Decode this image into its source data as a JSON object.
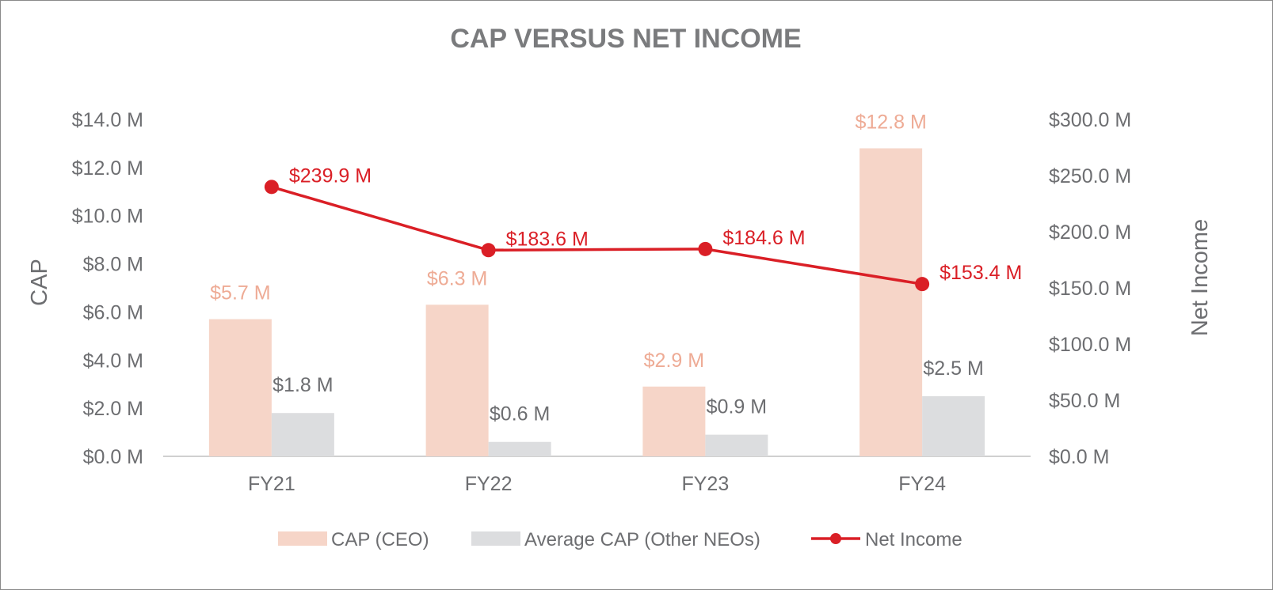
{
  "chart_data": {
    "type": "bar",
    "title": "CAP VERSUS NET INCOME",
    "categories": [
      "FY21",
      "FY22",
      "FY23",
      "FY24"
    ],
    "xlabel": "",
    "ylabel": "CAP",
    "y2label": "Net Income",
    "ylim": [
      0,
      14
    ],
    "y2lim": [
      0,
      300
    ],
    "y_ticks": [
      "$0.0 M",
      "$2.0 M",
      "$4.0 M",
      "$6.0 M",
      "$8.0 M",
      "$10.0 M",
      "$12.0 M",
      "$14.0 M"
    ],
    "y2_ticks": [
      "$0.0 M",
      "$50.0 M",
      "$100.0 M",
      "$150.0 M",
      "$200.0 M",
      "$250.0 M",
      "$300.0 M"
    ],
    "grid": false,
    "legend_position": "bottom",
    "series": [
      {
        "name": "CAP (CEO)",
        "kind": "bar",
        "axis": "left",
        "color": "#f6d5c8",
        "label_color": "#eeab95",
        "values": [
          5.7,
          6.3,
          2.9,
          12.8
        ],
        "labels": [
          "$5.7 M",
          "$6.3 M",
          "$2.9 M",
          "$12.8 M"
        ]
      },
      {
        "name": "Average CAP (Other NEOs)",
        "kind": "bar",
        "axis": "left",
        "color": "#dcdddf",
        "label_color": "#6d6e71",
        "values": [
          1.8,
          0.6,
          0.9,
          2.5
        ],
        "labels": [
          "$1.8 M",
          "$0.6 M",
          "$0.9 M",
          "$2.5 M"
        ]
      },
      {
        "name": "Net Income",
        "kind": "line",
        "axis": "right",
        "color": "#da1f26",
        "label_color": "#da1f26",
        "values": [
          239.9,
          183.6,
          184.6,
          153.4
        ],
        "labels": [
          "$239.9 M",
          "$183.6 M",
          "$184.6 M",
          "$153.4 M"
        ]
      }
    ],
    "text_color": "#6d6e71",
    "axis_line_color": "#d0d0d0"
  }
}
